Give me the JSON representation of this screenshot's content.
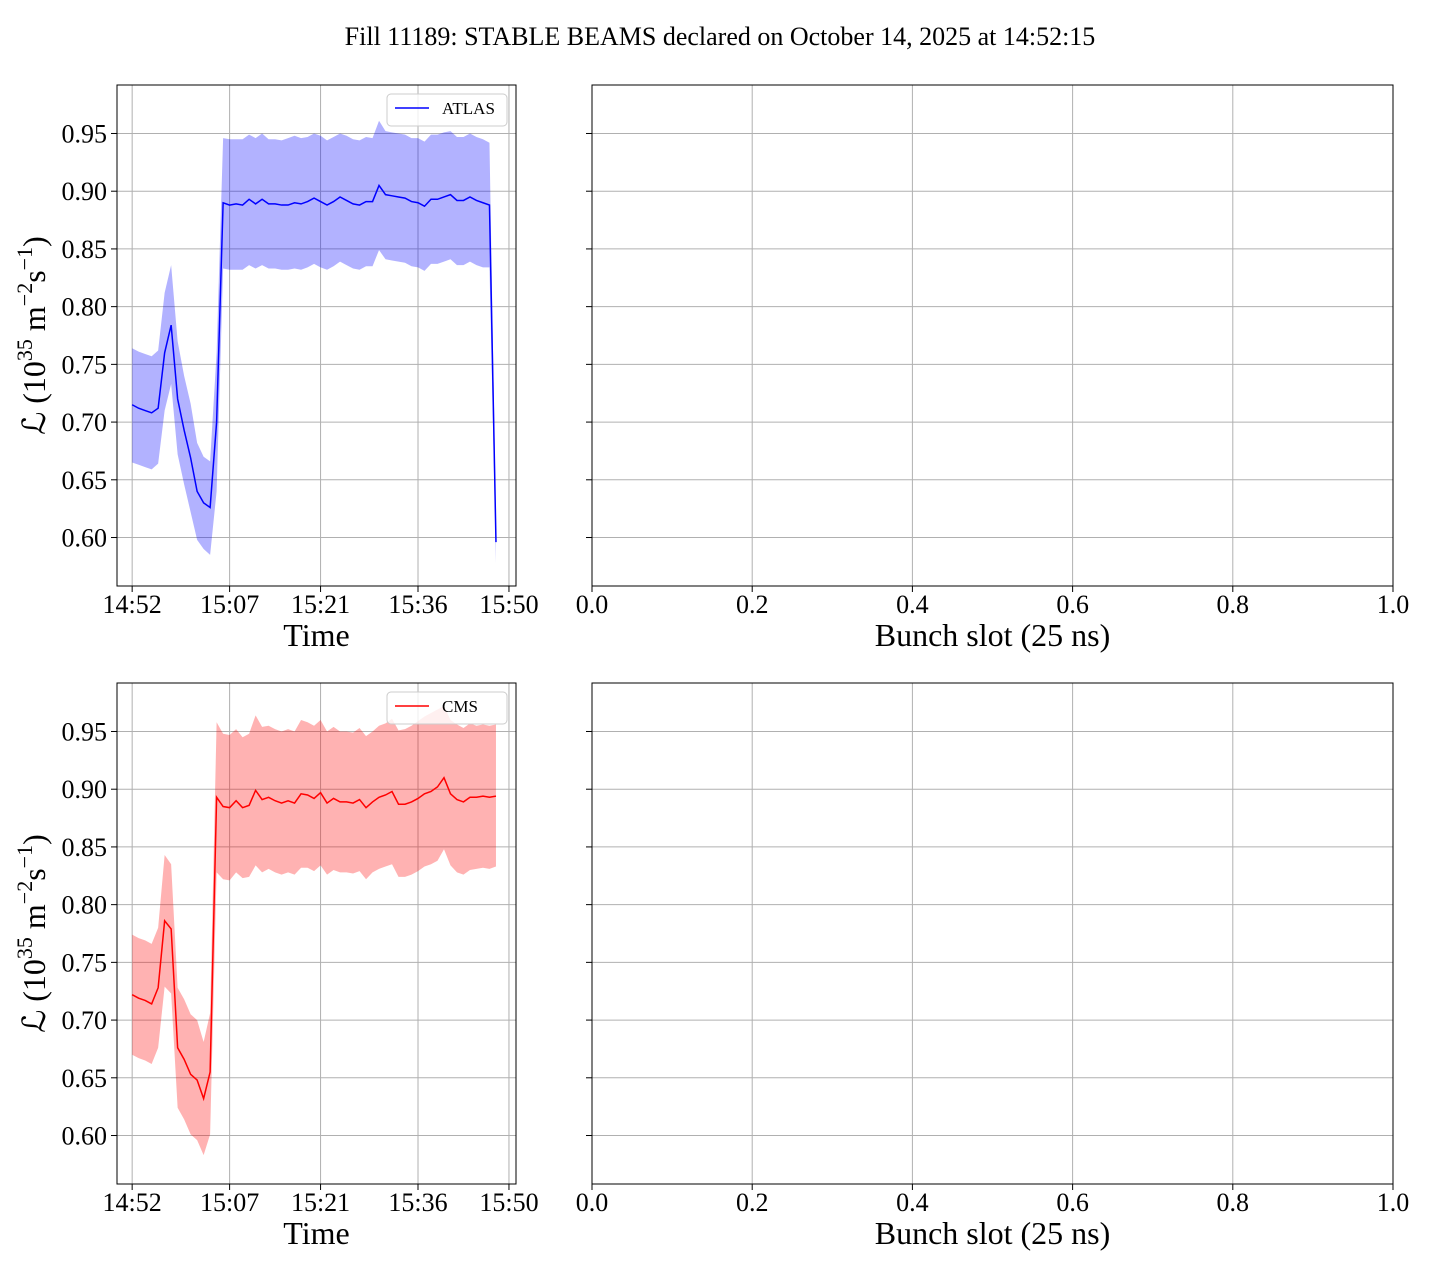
{
  "title": "Fill 11189: STABLE BEAMS declared on October 14, 2025 at 14:52:15",
  "chart_data": [
    {
      "type": "line",
      "xlabel": "Time",
      "ylabel": [
        "ℒ (10",
        "35",
        " m",
        "−2",
        "s",
        "−1",
        ")"
      ],
      "x": [
        "14:52",
        "14:53",
        "14:54",
        "14:55",
        "14:56",
        "14:57",
        "14:58",
        "14:59",
        "15:00",
        "15:01",
        "15:02",
        "15:03",
        "15:04",
        "15:05",
        "15:06",
        "15:07",
        "15:08",
        "15:09",
        "15:10",
        "15:11",
        "15:12",
        "15:13",
        "15:14",
        "15:15",
        "15:16",
        "15:17",
        "15:18",
        "15:19",
        "15:20",
        "15:21",
        "15:22",
        "15:23",
        "15:24",
        "15:25",
        "15:26",
        "15:27",
        "15:28",
        "15:29",
        "15:30",
        "15:31",
        "15:32",
        "15:33",
        "15:34",
        "15:35",
        "15:36",
        "15:37",
        "15:38",
        "15:39",
        "15:40",
        "15:41",
        "15:42",
        "15:43",
        "15:44",
        "15:45",
        "15:46",
        "15:47",
        "15:48"
      ],
      "series": [
        {
          "name": "ATLAS",
          "color": "#0000ff",
          "band_color": "#0000ff",
          "values": [
            0.715,
            0.712,
            0.71,
            0.708,
            0.712,
            0.76,
            0.784,
            0.72,
            0.693,
            0.669,
            0.64,
            0.63,
            0.626,
            0.7,
            0.89,
            0.888,
            0.889,
            0.888,
            0.893,
            0.889,
            0.893,
            0.889,
            0.889,
            0.888,
            0.888,
            0.89,
            0.889,
            0.891,
            0.894,
            0.891,
            0.888,
            0.891,
            0.895,
            0.892,
            0.889,
            0.888,
            0.891,
            0.891,
            0.905,
            0.897,
            0.896,
            0.895,
            0.894,
            0.891,
            0.89,
            0.887,
            0.893,
            0.893,
            0.895,
            0.897,
            0.892,
            0.892,
            0.895,
            0.892,
            0.89,
            0.888,
            0.596
          ],
          "upper": [
            0.764,
            0.761,
            0.759,
            0.757,
            0.762,
            0.812,
            0.836,
            0.77,
            0.74,
            0.716,
            0.682,
            0.67,
            0.666,
            0.76,
            0.946,
            0.945,
            0.945,
            0.945,
            0.949,
            0.946,
            0.95,
            0.945,
            0.945,
            0.944,
            0.946,
            0.948,
            0.946,
            0.947,
            0.95,
            0.948,
            0.944,
            0.947,
            0.95,
            0.948,
            0.945,
            0.944,
            0.947,
            0.946,
            0.961,
            0.952,
            0.951,
            0.95,
            0.949,
            0.946,
            0.946,
            0.943,
            0.949,
            0.949,
            0.951,
            0.952,
            0.947,
            0.947,
            0.95,
            0.947,
            0.945,
            0.942,
            0.614
          ],
          "lower": [
            0.665,
            0.663,
            0.661,
            0.659,
            0.664,
            0.71,
            0.733,
            0.672,
            0.646,
            0.622,
            0.598,
            0.59,
            0.585,
            0.64,
            0.833,
            0.832,
            0.832,
            0.832,
            0.836,
            0.833,
            0.836,
            0.833,
            0.833,
            0.832,
            0.832,
            0.833,
            0.832,
            0.834,
            0.837,
            0.834,
            0.832,
            0.835,
            0.839,
            0.836,
            0.833,
            0.832,
            0.835,
            0.835,
            0.849,
            0.841,
            0.84,
            0.839,
            0.838,
            0.835,
            0.834,
            0.831,
            0.837,
            0.837,
            0.839,
            0.841,
            0.836,
            0.836,
            0.839,
            0.836,
            0.834,
            0.834,
            0.578
          ]
        }
      ],
      "xlim": [
        "14:49:40",
        "15:51:05"
      ],
      "xticks": [
        "14:52",
        "15:07",
        "15:21",
        "15:36",
        "15:50"
      ],
      "ylim": [
        0.558,
        0.992
      ],
      "yticks": [
        {
          "value": 0.6,
          "label": "0.60"
        },
        0.65,
        {
          "value": 0.7,
          "label": "0.70"
        },
        0.75,
        {
          "value": 0.8,
          "label": "0.80"
        },
        0.85,
        {
          "value": 0.9,
          "label": "0.90"
        },
        0.95
      ],
      "ytick_labels": true,
      "grid": true,
      "legend": "upper right"
    },
    {
      "type": "line",
      "xlabel": "Bunch slot (25 ns)",
      "series": [],
      "xlim": [
        0,
        1
      ],
      "xticks": [
        {
          "value": 0,
          "label": "0.0"
        },
        0.2,
        0.4,
        0.6,
        0.8,
        {
          "value": 1,
          "label": "1.0"
        }
      ],
      "ylim": [
        0.558,
        0.992
      ],
      "yticks": [
        0.6,
        0.65,
        0.7,
        0.75,
        0.8,
        0.85,
        0.9,
        0.95
      ],
      "ytick_labels": false,
      "grid": true
    },
    {
      "type": "line",
      "xlabel": "Time",
      "ylabel": [
        "ℒ (10",
        "35",
        " m",
        "−2",
        "s",
        "−1",
        ")"
      ],
      "x": [
        "14:52",
        "14:53",
        "14:54",
        "14:55",
        "14:56",
        "14:57",
        "14:58",
        "14:59",
        "15:00",
        "15:01",
        "15:02",
        "15:03",
        "15:04",
        "15:05",
        "15:06",
        "15:07",
        "15:08",
        "15:09",
        "15:10",
        "15:11",
        "15:12",
        "15:13",
        "15:14",
        "15:15",
        "15:16",
        "15:17",
        "15:18",
        "15:19",
        "15:20",
        "15:21",
        "15:22",
        "15:23",
        "15:24",
        "15:25",
        "15:26",
        "15:27",
        "15:28",
        "15:29",
        "15:30",
        "15:31",
        "15:32",
        "15:33",
        "15:34",
        "15:35",
        "15:36",
        "15:37",
        "15:38",
        "15:39",
        "15:40",
        "15:41",
        "15:42",
        "15:43",
        "15:44",
        "15:45",
        "15:46",
        "15:47",
        "15:48"
      ],
      "series": [
        {
          "name": "CMS",
          "color": "#ff0000",
          "band_color": "#ff0000",
          "values": [
            0.722,
            0.719,
            0.717,
            0.714,
            0.728,
            0.786,
            0.779,
            0.676,
            0.666,
            0.653,
            0.648,
            0.632,
            0.655,
            0.893,
            0.885,
            0.884,
            0.89,
            0.884,
            0.886,
            0.899,
            0.891,
            0.893,
            0.89,
            0.888,
            0.89,
            0.888,
            0.896,
            0.895,
            0.892,
            0.897,
            0.888,
            0.892,
            0.889,
            0.889,
            0.888,
            0.891,
            0.884,
            0.889,
            0.893,
            0.895,
            0.898,
            0.887,
            0.887,
            0.889,
            0.892,
            0.896,
            0.898,
            0.902,
            0.91,
            0.896,
            0.891,
            0.889,
            0.893,
            0.893,
            0.894,
            0.893,
            0.894
          ],
          "upper": [
            0.774,
            0.771,
            0.769,
            0.766,
            0.78,
            0.843,
            0.835,
            0.728,
            0.718,
            0.705,
            0.7,
            0.681,
            0.706,
            0.958,
            0.948,
            0.947,
            0.952,
            0.945,
            0.948,
            0.964,
            0.954,
            0.955,
            0.952,
            0.95,
            0.952,
            0.95,
            0.96,
            0.958,
            0.955,
            0.96,
            0.95,
            0.954,
            0.95,
            0.95,
            0.949,
            0.953,
            0.946,
            0.95,
            0.955,
            0.957,
            0.961,
            0.951,
            0.952,
            0.955,
            0.959,
            0.963,
            0.966,
            0.969,
            0.972,
            0.96,
            0.956,
            0.953,
            0.957,
            0.955,
            0.956,
            0.955,
            0.956
          ],
          "lower": [
            0.67,
            0.667,
            0.665,
            0.662,
            0.676,
            0.729,
            0.723,
            0.624,
            0.614,
            0.601,
            0.596,
            0.583,
            0.601,
            0.828,
            0.822,
            0.821,
            0.828,
            0.823,
            0.824,
            0.834,
            0.828,
            0.831,
            0.828,
            0.826,
            0.828,
            0.826,
            0.832,
            0.832,
            0.829,
            0.834,
            0.826,
            0.83,
            0.828,
            0.828,
            0.827,
            0.829,
            0.822,
            0.828,
            0.831,
            0.833,
            0.835,
            0.824,
            0.824,
            0.826,
            0.829,
            0.833,
            0.835,
            0.838,
            0.848,
            0.834,
            0.828,
            0.826,
            0.83,
            0.831,
            0.832,
            0.831,
            0.833
          ]
        }
      ],
      "xlim": [
        "14:49:40",
        "15:51:05"
      ],
      "xticks": [
        "14:52",
        "15:07",
        "15:21",
        "15:36",
        "15:50"
      ],
      "ylim": [
        0.558,
        0.992
      ],
      "yticks": [
        {
          "value": 0.6,
          "label": "0.60"
        },
        0.65,
        {
          "value": 0.7,
          "label": "0.70"
        },
        0.75,
        {
          "value": 0.8,
          "label": "0.80"
        },
        0.85,
        {
          "value": 0.9,
          "label": "0.90"
        },
        0.95
      ],
      "ytick_labels": true,
      "grid": true,
      "legend": "upper right"
    },
    {
      "type": "line",
      "xlabel": "Bunch slot (25 ns)",
      "series": [],
      "xlim": [
        0,
        1
      ],
      "xticks": [
        {
          "value": 0,
          "label": "0.0"
        },
        0.2,
        0.4,
        0.6,
        0.8,
        {
          "value": 1,
          "label": "1.0"
        }
      ],
      "ylim": [
        0.558,
        0.992
      ],
      "yticks": [
        0.6,
        0.65,
        0.7,
        0.75,
        0.8,
        0.85,
        0.9,
        0.95
      ],
      "ytick_labels": false,
      "grid": true
    }
  ]
}
